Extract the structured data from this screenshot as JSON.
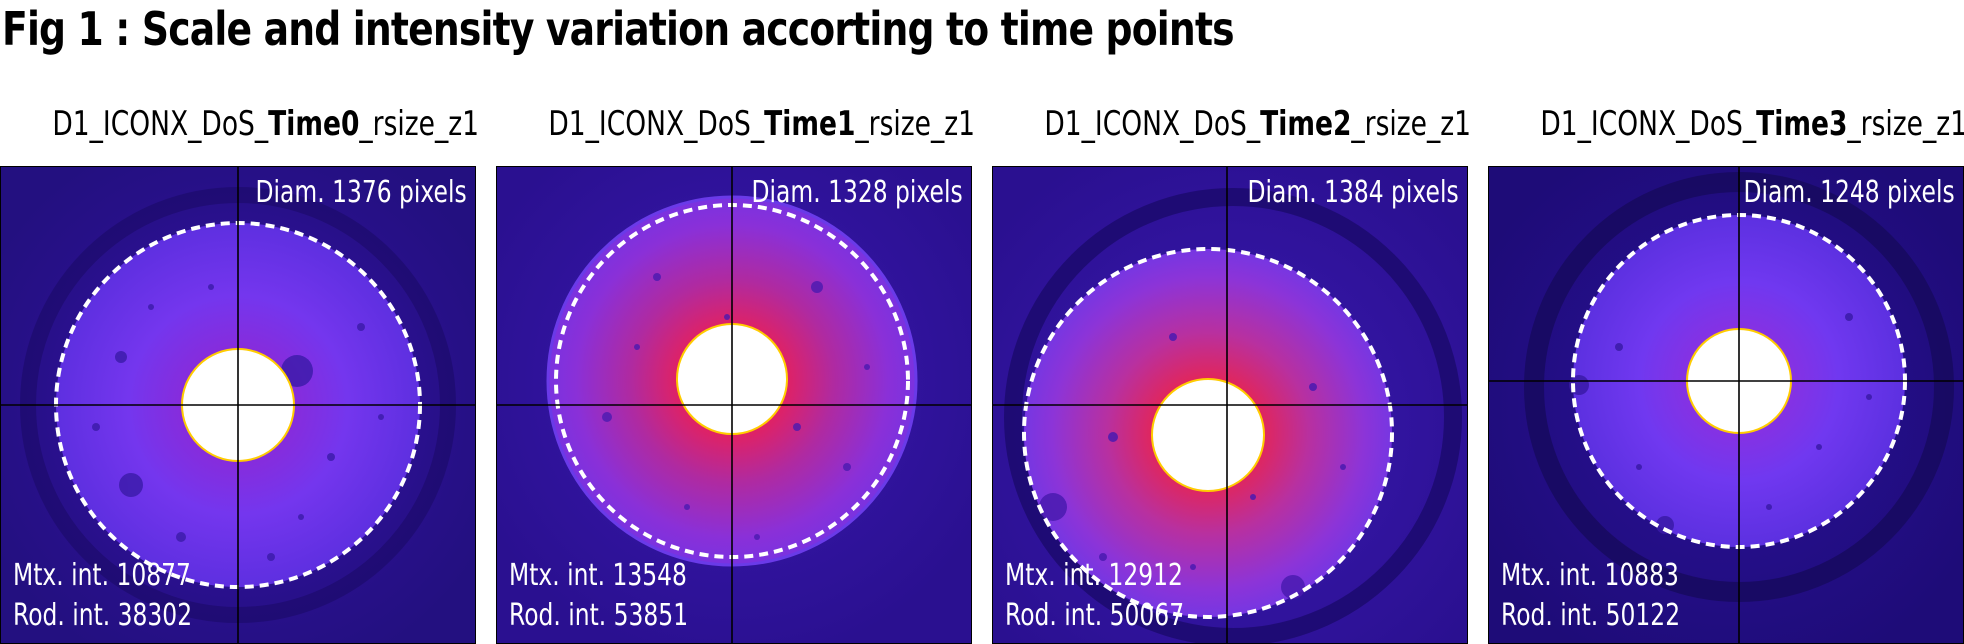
{
  "figure": {
    "title": "Fig 1 : Scale and intensity variation accorting to time points"
  },
  "panels": [
    {
      "title_prefix": "D1_ICONX_DoS_",
      "title_bold": "Time0",
      "title_suffix": "_rsize_z1",
      "diameter": "Diam. 1376 pixels",
      "matrix_intensity": "Mtx. int. 10877",
      "rod_intensity": "Rod. int. 38302"
    },
    {
      "title_prefix": "D1_ICONX_DoS_",
      "title_bold": "Time1",
      "title_suffix": "_rsize_z1",
      "diameter": "Diam. 1328 pixels",
      "matrix_intensity": "Mtx. int. 13548",
      "rod_intensity": "Rod. int. 53851"
    },
    {
      "title_prefix": "D1_ICONX_DoS_",
      "title_bold": "Time2",
      "title_suffix": "_rsize_z1",
      "diameter": "Diam. 1384 pixels",
      "matrix_intensity": "Mtx. int. 12912",
      "rod_intensity": "Rod. int. 50067"
    },
    {
      "title_prefix": "D1_ICONX_DoS_",
      "title_bold": "Time3",
      "title_suffix": "_rsize_z1",
      "diameter": "Diam. 1248 pixels",
      "matrix_intensity": "Mtx. int. 10883",
      "rod_intensity": "Rod. int. 50122"
    }
  ],
  "colors": {
    "background_dark": "#2a0f8c",
    "disc_violet": "#6a2ee8",
    "disc_warm": "#e0205a",
    "rod_edge": "#ffd000",
    "dashed_circle": "#ffffff",
    "crosshair": "#000000"
  }
}
